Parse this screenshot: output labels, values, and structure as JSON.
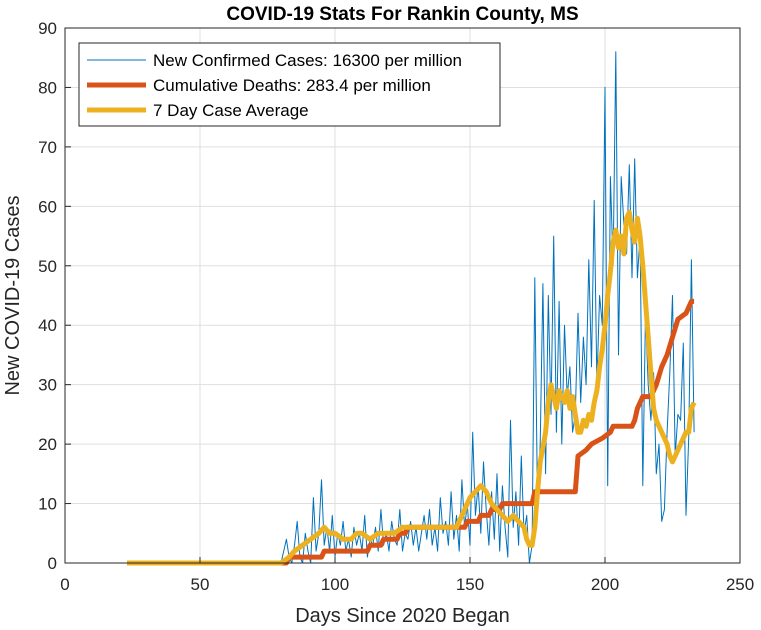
{
  "chart_data": {
    "type": "line",
    "title": "COVID-19 Stats For Rankin County, MS",
    "xlabel": "Days Since 2020 Began",
    "ylabel": "New COVID-19 Cases",
    "xlim": [
      0,
      250
    ],
    "ylim": [
      0,
      90
    ],
    "xticks": [
      0,
      50,
      100,
      150,
      200,
      250
    ],
    "yticks": [
      0,
      10,
      20,
      30,
      40,
      50,
      60,
      70,
      80,
      90
    ],
    "xtick_labels": [
      "0",
      "50",
      "100",
      "150",
      "200",
      "250"
    ],
    "ytick_labels": [
      "0",
      "10",
      "20",
      "30",
      "40",
      "50",
      "60",
      "70",
      "80",
      "90"
    ],
    "grid": true,
    "legend_position": "top-left",
    "series": [
      {
        "name": "New Confirmed Cases: 16300 per million",
        "color": "#0072BD",
        "line_width": "thin",
        "points": [
          [
            23,
            0
          ],
          [
            80,
            0
          ],
          [
            81,
            2
          ],
          [
            82,
            4
          ],
          [
            83,
            1
          ],
          [
            84,
            0
          ],
          [
            85,
            3
          ],
          [
            86,
            7
          ],
          [
            87,
            1
          ],
          [
            88,
            0
          ],
          [
            89,
            5
          ],
          [
            90,
            2
          ],
          [
            91,
            0
          ],
          [
            92,
            11
          ],
          [
            93,
            2
          ],
          [
            94,
            5
          ],
          [
            95,
            14
          ],
          [
            96,
            3
          ],
          [
            97,
            6
          ],
          [
            98,
            2
          ],
          [
            99,
            8
          ],
          [
            100,
            1
          ],
          [
            101,
            5
          ],
          [
            102,
            3
          ],
          [
            103,
            7
          ],
          [
            104,
            2
          ],
          [
            105,
            4
          ],
          [
            106,
            1
          ],
          [
            107,
            6
          ],
          [
            108,
            3
          ],
          [
            109,
            5
          ],
          [
            110,
            2
          ],
          [
            111,
            8
          ],
          [
            112,
            1
          ],
          [
            113,
            4
          ],
          [
            114,
            3
          ],
          [
            115,
            6
          ],
          [
            116,
            2
          ],
          [
            117,
            9
          ],
          [
            118,
            3
          ],
          [
            119,
            5
          ],
          [
            120,
            2
          ],
          [
            121,
            7
          ],
          [
            122,
            4
          ],
          [
            123,
            3
          ],
          [
            124,
            9
          ],
          [
            125,
            2
          ],
          [
            126,
            5
          ],
          [
            127,
            4
          ],
          [
            128,
            7
          ],
          [
            129,
            3
          ],
          [
            130,
            6
          ],
          [
            131,
            2
          ],
          [
            132,
            5
          ],
          [
            133,
            8
          ],
          [
            134,
            4
          ],
          [
            135,
            9
          ],
          [
            136,
            3
          ],
          [
            137,
            6
          ],
          [
            138,
            2
          ],
          [
            139,
            11
          ],
          [
            140,
            5
          ],
          [
            141,
            7
          ],
          [
            142,
            3
          ],
          [
            143,
            12
          ],
          [
            144,
            4
          ],
          [
            145,
            8
          ],
          [
            146,
            2
          ],
          [
            147,
            14
          ],
          [
            148,
            6
          ],
          [
            149,
            10
          ],
          [
            150,
            3
          ],
          [
            151,
            22
          ],
          [
            152,
            8
          ],
          [
            153,
            13
          ],
          [
            154,
            5
          ],
          [
            155,
            17
          ],
          [
            156,
            9
          ],
          [
            157,
            3
          ],
          [
            158,
            12
          ],
          [
            159,
            4
          ],
          [
            160,
            15
          ],
          [
            161,
            2
          ],
          [
            162,
            13
          ],
          [
            163,
            6
          ],
          [
            164,
            1
          ],
          [
            165,
            24
          ],
          [
            166,
            6
          ],
          [
            167,
            12
          ],
          [
            168,
            3
          ],
          [
            169,
            18
          ],
          [
            170,
            5
          ],
          [
            171,
            8
          ],
          [
            172,
            0
          ],
          [
            173,
            3
          ],
          [
            174,
            48
          ],
          [
            175,
            10
          ],
          [
            176,
            20
          ],
          [
            177,
            47
          ],
          [
            178,
            15
          ],
          [
            179,
            45
          ],
          [
            180,
            25
          ],
          [
            181,
            55
          ],
          [
            182,
            22
          ],
          [
            183,
            44
          ],
          [
            184,
            20
          ],
          [
            185,
            40
          ],
          [
            186,
            28
          ],
          [
            187,
            33
          ],
          [
            188,
            22
          ],
          [
            189,
            25
          ],
          [
            190,
            42
          ],
          [
            191,
            27
          ],
          [
            192,
            38
          ],
          [
            193,
            30
          ],
          [
            194,
            51
          ],
          [
            195,
            33
          ],
          [
            196,
            61
          ],
          [
            197,
            30
          ],
          [
            198,
            45
          ],
          [
            199,
            40
          ],
          [
            200,
            80
          ],
          [
            201,
            13
          ],
          [
            202,
            65
          ],
          [
            203,
            50
          ],
          [
            204,
            86
          ],
          [
            205,
            35
          ],
          [
            206,
            65
          ],
          [
            207,
            57
          ],
          [
            208,
            52
          ],
          [
            209,
            67
          ],
          [
            210,
            48
          ],
          [
            211,
            68
          ],
          [
            212,
            48
          ],
          [
            213,
            55
          ],
          [
            214,
            13
          ],
          [
            215,
            42
          ],
          [
            216,
            30
          ],
          [
            217,
            24
          ],
          [
            218,
            32
          ],
          [
            219,
            15
          ],
          [
            220,
            20
          ],
          [
            221,
            7
          ],
          [
            222,
            9
          ],
          [
            223,
            22
          ],
          [
            224,
            32
          ],
          [
            225,
            45
          ],
          [
            226,
            18
          ],
          [
            227,
            25
          ],
          [
            228,
            24
          ],
          [
            229,
            37
          ],
          [
            230,
            8
          ],
          [
            231,
            21
          ],
          [
            232,
            51
          ],
          [
            233,
            22
          ]
        ]
      },
      {
        "name": "Cumulative Deaths: 283.4 per million",
        "color": "#D95319",
        "line_width": "thick",
        "points": [
          [
            23,
            0
          ],
          [
            82,
            0
          ],
          [
            83,
            1
          ],
          [
            95,
            1
          ],
          [
            96,
            2
          ],
          [
            112,
            2
          ],
          [
            113,
            3
          ],
          [
            117,
            3
          ],
          [
            118,
            4
          ],
          [
            123,
            4
          ],
          [
            124,
            5
          ],
          [
            126,
            5
          ],
          [
            127,
            6
          ],
          [
            148,
            6
          ],
          [
            149,
            7
          ],
          [
            153,
            7
          ],
          [
            154,
            8
          ],
          [
            157,
            8
          ],
          [
            158,
            9
          ],
          [
            161,
            9
          ],
          [
            162,
            10
          ],
          [
            173,
            10
          ],
          [
            174,
            12
          ],
          [
            189,
            12
          ],
          [
            190,
            18
          ],
          [
            193,
            19
          ],
          [
            195,
            20
          ],
          [
            199,
            21
          ],
          [
            202,
            22
          ],
          [
            203,
            23
          ],
          [
            210,
            23
          ],
          [
            211,
            24
          ],
          [
            212,
            26
          ],
          [
            213,
            27
          ],
          [
            214,
            28
          ],
          [
            217,
            28
          ],
          [
            218,
            29
          ],
          [
            219,
            30
          ],
          [
            221,
            33
          ],
          [
            223,
            35
          ],
          [
            225,
            38
          ],
          [
            227,
            41
          ],
          [
            230,
            42
          ],
          [
            232,
            44
          ],
          [
            233,
            44
          ]
        ]
      },
      {
        "name": "7 Day Case Average",
        "color": "#EDB120",
        "line_width": "thick",
        "points": [
          [
            23,
            0
          ],
          [
            80,
            0
          ],
          [
            83,
            1
          ],
          [
            85,
            2
          ],
          [
            88,
            3
          ],
          [
            91,
            4
          ],
          [
            94,
            5
          ],
          [
            96,
            6
          ],
          [
            98,
            5
          ],
          [
            100,
            5
          ],
          [
            103,
            4
          ],
          [
            106,
            4
          ],
          [
            108,
            5
          ],
          [
            110,
            5
          ],
          [
            113,
            4
          ],
          [
            116,
            5
          ],
          [
            119,
            5
          ],
          [
            122,
            5
          ],
          [
            125,
            6
          ],
          [
            128,
            6
          ],
          [
            131,
            6
          ],
          [
            134,
            6
          ],
          [
            137,
            6
          ],
          [
            140,
            6
          ],
          [
            143,
            6
          ],
          [
            145,
            6
          ],
          [
            148,
            9
          ],
          [
            150,
            11
          ],
          [
            152,
            12
          ],
          [
            154,
            13
          ],
          [
            156,
            12
          ],
          [
            158,
            10
          ],
          [
            160,
            9
          ],
          [
            162,
            8
          ],
          [
            164,
            7
          ],
          [
            166,
            8
          ],
          [
            168,
            7
          ],
          [
            170,
            6
          ],
          [
            171,
            4
          ],
          [
            172,
            3
          ],
          [
            173,
            3
          ],
          [
            174,
            6
          ],
          [
            175,
            12
          ],
          [
            176,
            17
          ],
          [
            178,
            22
          ],
          [
            179,
            27
          ],
          [
            180,
            30
          ],
          [
            181,
            28
          ],
          [
            182,
            26
          ],
          [
            183,
            29
          ],
          [
            184,
            28
          ],
          [
            185,
            27
          ],
          [
            186,
            29
          ],
          [
            187,
            26
          ],
          [
            188,
            28
          ],
          [
            189,
            25
          ],
          [
            190,
            22
          ],
          [
            191,
            22
          ],
          [
            192,
            24
          ],
          [
            193,
            23
          ],
          [
            194,
            25
          ],
          [
            195,
            24
          ],
          [
            196,
            27
          ],
          [
            197,
            29
          ],
          [
            198,
            33
          ],
          [
            199,
            36
          ],
          [
            200,
            40
          ],
          [
            201,
            45
          ],
          [
            202,
            49
          ],
          [
            203,
            54
          ],
          [
            204,
            56
          ],
          [
            205,
            53
          ],
          [
            206,
            55
          ],
          [
            207,
            52
          ],
          [
            208,
            58
          ],
          [
            209,
            59
          ],
          [
            210,
            56
          ],
          [
            211,
            54
          ],
          [
            212,
            58
          ],
          [
            213,
            55
          ],
          [
            214,
            50
          ],
          [
            215,
            44
          ],
          [
            216,
            38
          ],
          [
            217,
            32
          ],
          [
            218,
            26
          ],
          [
            219,
            24
          ],
          [
            220,
            23
          ],
          [
            221,
            22
          ],
          [
            222,
            21
          ],
          [
            223,
            20
          ],
          [
            224,
            18
          ],
          [
            225,
            17
          ],
          [
            226,
            18
          ],
          [
            227,
            19
          ],
          [
            228,
            20
          ],
          [
            229,
            21
          ],
          [
            230,
            22
          ],
          [
            231,
            22
          ],
          [
            232,
            26
          ],
          [
            233,
            27
          ]
        ]
      }
    ]
  }
}
